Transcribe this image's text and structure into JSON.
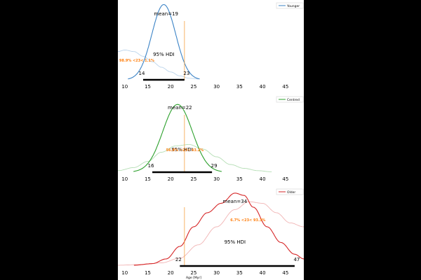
{
  "chart_data": {
    "type": "line",
    "xlabel": "Age [Myr]",
    "xlim": [
      8.5,
      49
    ],
    "ticks": [
      10,
      15,
      20,
      25,
      30,
      35,
      40,
      45
    ],
    "reference_line_x": 23,
    "hdi_label": "95% HDI",
    "colors": {
      "Younger": "#3b83c6",
      "Centred": "#2ca02c",
      "Older": "#d62728",
      "reference": "#f5a142",
      "annotation": "#ff7f0e"
    },
    "panels": [
      {
        "name": "Younger",
        "legend": "Younger",
        "mean_label": "mean=19",
        "mean": 19,
        "hdi": [
          14,
          23
        ],
        "hdi_low_label": "14",
        "hdi_high_label": "23",
        "annotation": "98.9% <23< 1.1%",
        "kde": {
          "mu": 18.5,
          "sigma": 2.6
        },
        "prior": [
          [
            8.5,
            0.36
          ],
          [
            10,
            0.38
          ],
          [
            12,
            0.36
          ],
          [
            14,
            0.3
          ],
          [
            16,
            0.23
          ],
          [
            18,
            0.16
          ],
          [
            20,
            0.1
          ],
          [
            22,
            0.05
          ],
          [
            24,
            0.02
          ],
          [
            26,
            0.01
          ]
        ]
      },
      {
        "name": "Centred",
        "legend": "Centred",
        "mean_label": "mean=22",
        "mean": 22,
        "hdi": [
          16,
          29
        ],
        "hdi_low_label": "16",
        "hdi_high_label": "29",
        "annotation": "56.8% <23< 43.2%",
        "kde": {
          "mu": 21.5,
          "sigma": 3.2
        },
        "prior": [
          [
            8.5,
            0.02
          ],
          [
            12,
            0.06
          ],
          [
            15,
            0.14
          ],
          [
            18,
            0.26
          ],
          [
            21,
            0.34
          ],
          [
            24,
            0.36
          ],
          [
            27,
            0.3
          ],
          [
            30,
            0.2
          ],
          [
            33,
            0.1
          ],
          [
            36,
            0.05
          ],
          [
            39,
            0.02
          ],
          [
            42,
            0.005
          ]
        ]
      },
      {
        "name": "Older",
        "legend": "Older",
        "mean_label": "mean=34",
        "mean": 34,
        "hdi": [
          22,
          47
        ],
        "hdi_low_label": "22",
        "hdi_high_label": "47",
        "annotation": "6.7% <23< 93.3%",
        "kde": [
          [
            12,
            0.01
          ],
          [
            16,
            0.03
          ],
          [
            19,
            0.09
          ],
          [
            22,
            0.25
          ],
          [
            25,
            0.5
          ],
          [
            28,
            0.68
          ],
          [
            31,
            0.8
          ],
          [
            34,
            0.93
          ],
          [
            36,
            0.9
          ],
          [
            38,
            0.75
          ],
          [
            41,
            0.5
          ],
          [
            44,
            0.3
          ],
          [
            47,
            0.15
          ],
          [
            49,
            0.09
          ]
        ],
        "prior": [
          [
            8.5,
            0.01
          ],
          [
            14,
            0.02
          ],
          [
            18,
            0.04
          ],
          [
            22,
            0.1
          ],
          [
            26,
            0.27
          ],
          [
            30,
            0.5
          ],
          [
            34,
            0.72
          ],
          [
            37,
            0.82
          ],
          [
            40,
            0.8
          ],
          [
            43,
            0.68
          ],
          [
            46,
            0.55
          ],
          [
            49,
            0.5
          ]
        ]
      }
    ]
  }
}
